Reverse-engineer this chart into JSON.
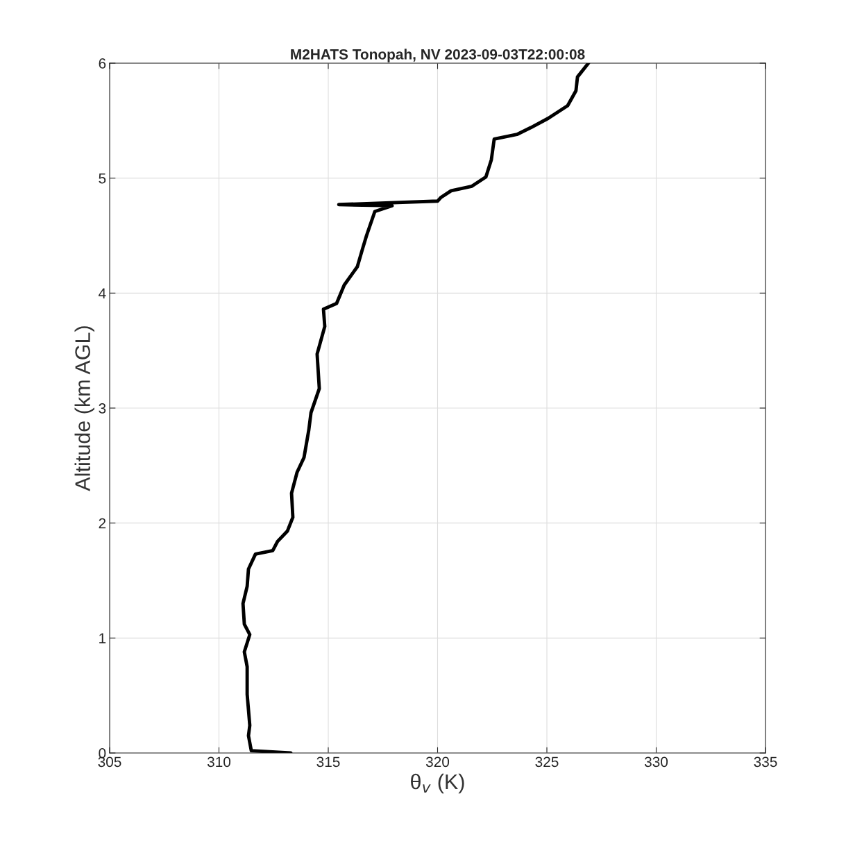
{
  "chart_data": {
    "type": "line",
    "title": "M2HATS Tonopah, NV 2023-09-03T22:00:08",
    "xlabel": "θ$_{v}$ (K)",
    "ylabel": "Altitude (km AGL)",
    "xlim": [
      305,
      335
    ],
    "xticks": [
      305,
      310,
      315,
      320,
      325,
      330,
      335
    ],
    "ylim": [
      0,
      6
    ],
    "yticks": [
      0,
      1,
      2,
      3,
      4,
      5,
      6
    ],
    "grid": true,
    "series": [
      {
        "color": "#000000",
        "x": [
          313.29,
          311.48,
          311.35,
          311.41,
          311.29,
          311.29,
          311.16,
          311.41,
          311.16,
          311.1,
          311.29,
          311.35,
          311.67,
          312.46,
          312.68,
          313.13,
          313.38,
          313.32,
          313.57,
          313.89,
          314.11,
          314.21,
          314.59,
          314.49,
          314.84,
          314.78,
          315.38,
          315.73,
          316.33,
          316.56,
          316.75,
          317.13,
          317.92,
          315.48,
          320.0,
          320.14,
          320.62,
          321.57,
          322.21,
          322.46,
          322.59,
          323.63,
          324.27,
          325.06,
          325.95,
          326.33,
          326.4,
          326.9
        ],
        "values": [
          0.0,
          0.02,
          0.15,
          0.24,
          0.51,
          0.75,
          0.88,
          1.03,
          1.12,
          1.3,
          1.45,
          1.6,
          1.73,
          1.76,
          1.84,
          1.93,
          2.05,
          2.26,
          2.44,
          2.57,
          2.81,
          2.96,
          3.17,
          3.47,
          3.71,
          3.86,
          3.91,
          4.07,
          4.23,
          4.38,
          4.5,
          4.71,
          4.76,
          4.77,
          4.8,
          4.83,
          4.89,
          4.93,
          5.01,
          5.16,
          5.34,
          5.38,
          5.44,
          5.52,
          5.63,
          5.76,
          5.88,
          6.0
        ]
      }
    ]
  }
}
